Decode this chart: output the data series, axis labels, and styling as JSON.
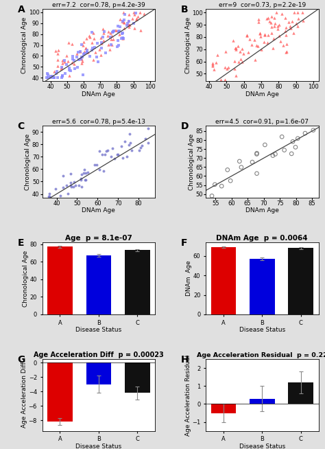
{
  "panel_A": {
    "title": "err=7.2  cor=0.78, p=4.2e-39",
    "xlabel": "DNAm Age",
    "ylabel": "Chronological Age",
    "xlim": [
      35,
      103
    ],
    "ylim": [
      37,
      103
    ],
    "xticks": [
      40,
      50,
      60,
      70,
      80,
      90,
      100
    ],
    "yticks": [
      40,
      50,
      60,
      70,
      80,
      90,
      100
    ],
    "line_x": [
      35,
      103
    ],
    "line_y": [
      35,
      103
    ]
  },
  "panel_B": {
    "title": "err=9  cor=0.73, p=2.2e-19",
    "xlabel": "DNAm Age",
    "ylabel": "Chronological Age",
    "xlim": [
      38,
      103
    ],
    "ylim": [
      44,
      103
    ],
    "xticks": [
      40,
      50,
      60,
      70,
      80,
      90,
      100
    ],
    "yticks": [
      50,
      60,
      70,
      80,
      90,
      100
    ],
    "line_x": [
      38,
      103
    ],
    "line_y": [
      38,
      103
    ]
  },
  "panel_C": {
    "title": "err=5.6  cor=0.78, p=5.4e-13",
    "xlabel": "DNAm Age",
    "ylabel": "Chronological Age",
    "xlim": [
      33,
      88
    ],
    "ylim": [
      37,
      95
    ],
    "xticks": [
      40,
      50,
      60,
      70,
      80
    ],
    "yticks": [
      40,
      50,
      60,
      70,
      80,
      90
    ],
    "line_x": [
      33,
      88
    ],
    "line_y": [
      33,
      88
    ]
  },
  "panel_D": {
    "title": "err=4.5  cor=0.91, p=1.6e-07",
    "xlabel": "DNAm Age",
    "ylabel": "Chronological Age",
    "xlim": [
      52,
      87
    ],
    "ylim": [
      48,
      88
    ],
    "xticks": [
      55,
      60,
      65,
      70,
      75,
      80,
      85
    ],
    "yticks": [
      50,
      55,
      60,
      65,
      70,
      75,
      80,
      85
    ],
    "line_x": [
      52,
      87
    ],
    "line_y": [
      52,
      87
    ]
  },
  "panel_E": {
    "title": "Age  p = 8.1e-07",
    "xlabel": "Disease Status",
    "ylabel": "Chronological Age",
    "categories": [
      "A",
      "B",
      "C"
    ],
    "values": [
      77,
      67,
      73
    ],
    "colors": [
      "#DD0000",
      "#0000DD",
      "#111111"
    ],
    "ylim": [
      0,
      82
    ],
    "yticks": [
      0,
      20,
      40,
      60,
      80
    ],
    "errors": [
      1.0,
      1.5,
      1.2
    ]
  },
  "panel_F": {
    "title": "DNAm Age  p = 0.0064",
    "xlabel": "Disease Status",
    "ylabel": "DNAm  Age",
    "categories": [
      "A",
      "B",
      "C"
    ],
    "values": [
      69,
      57,
      68
    ],
    "colors": [
      "#DD0000",
      "#0000DD",
      "#111111"
    ],
    "ylim": [
      0,
      74
    ],
    "yticks": [
      0,
      20,
      40,
      60
    ],
    "errors": [
      1.0,
      1.5,
      1.2
    ]
  },
  "panel_G": {
    "title": "Age Acceleration Diff  p = 0.00023",
    "xlabel": "Disease Status",
    "ylabel": "Age Acceleration Diff",
    "categories": [
      "A",
      "B",
      "C"
    ],
    "values": [
      -8.2,
      -3.0,
      -4.2
    ],
    "colors": [
      "#DD0000",
      "#0000DD",
      "#111111"
    ],
    "ylim": [
      -9.5,
      0.5
    ],
    "yticks": [
      -8,
      -6,
      -4,
      -2,
      0
    ],
    "errors": [
      0.5,
      1.2,
      0.9
    ]
  },
  "panel_H": {
    "title": "Age Acceleration Residual  p = 0.22",
    "xlabel": "Disease Status",
    "ylabel": "Age Acceleration Residual",
    "categories": [
      "A",
      "B",
      "C"
    ],
    "values": [
      -0.5,
      0.3,
      1.2
    ],
    "colors": [
      "#DD0000",
      "#0000DD",
      "#111111"
    ],
    "ylim": [
      -1.5,
      2.5
    ],
    "yticks": [
      -1,
      0,
      1,
      2
    ],
    "errors": [
      0.5,
      0.7,
      0.6
    ]
  },
  "bg_color": "#E0E0E0",
  "panel_bg": "#FFFFFF",
  "scatter_alpha": 0.8,
  "scatter_color_red": "#FF6060",
  "scatter_color_blue": "#8888FF"
}
